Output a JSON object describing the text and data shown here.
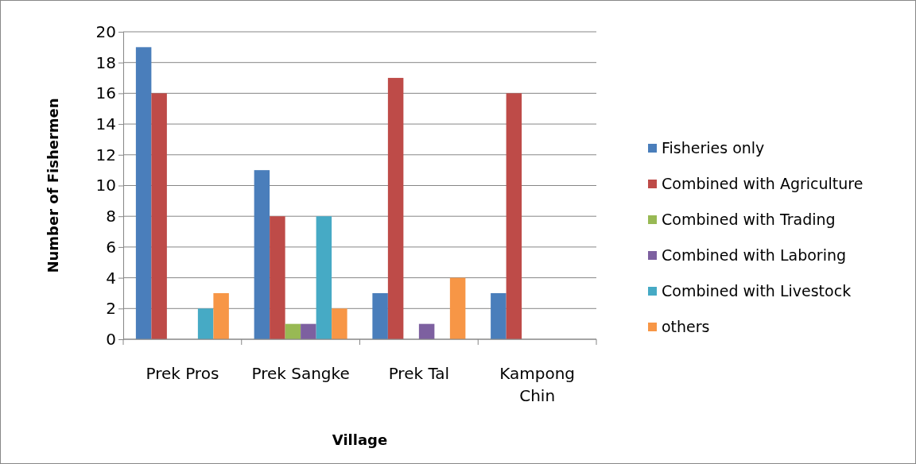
{
  "chart_data": {
    "type": "bar",
    "xlabel": "Village",
    "ylabel": "Number of Fishermen",
    "categories": [
      "Prek Pros",
      "Prek Sangke",
      "Prek Tal",
      "Kampong Chin"
    ],
    "series": [
      {
        "name": "Fisheries only",
        "color": "#4a7ebb",
        "values": [
          19,
          11,
          3,
          3
        ]
      },
      {
        "name": "Combined with Agriculture",
        "color": "#be4b48",
        "values": [
          16,
          8,
          17,
          16
        ]
      },
      {
        "name": "Combined with Trading",
        "color": "#98b954",
        "values": [
          0,
          1,
          0,
          0
        ]
      },
      {
        "name": "Combined with Laboring",
        "color": "#7d60a0",
        "values": [
          0,
          1,
          1,
          0
        ]
      },
      {
        "name": "Combined with Livestock",
        "color": "#46aac5",
        "values": [
          2,
          8,
          0,
          0
        ]
      },
      {
        "name": "others",
        "color": "#f79646",
        "values": [
          3,
          2,
          4,
          0
        ]
      }
    ],
    "ylim": [
      0,
      20
    ],
    "yticks": [
      0,
      2,
      4,
      6,
      8,
      10,
      12,
      14,
      16,
      18,
      20
    ],
    "grid": "y",
    "legend": "right"
  }
}
